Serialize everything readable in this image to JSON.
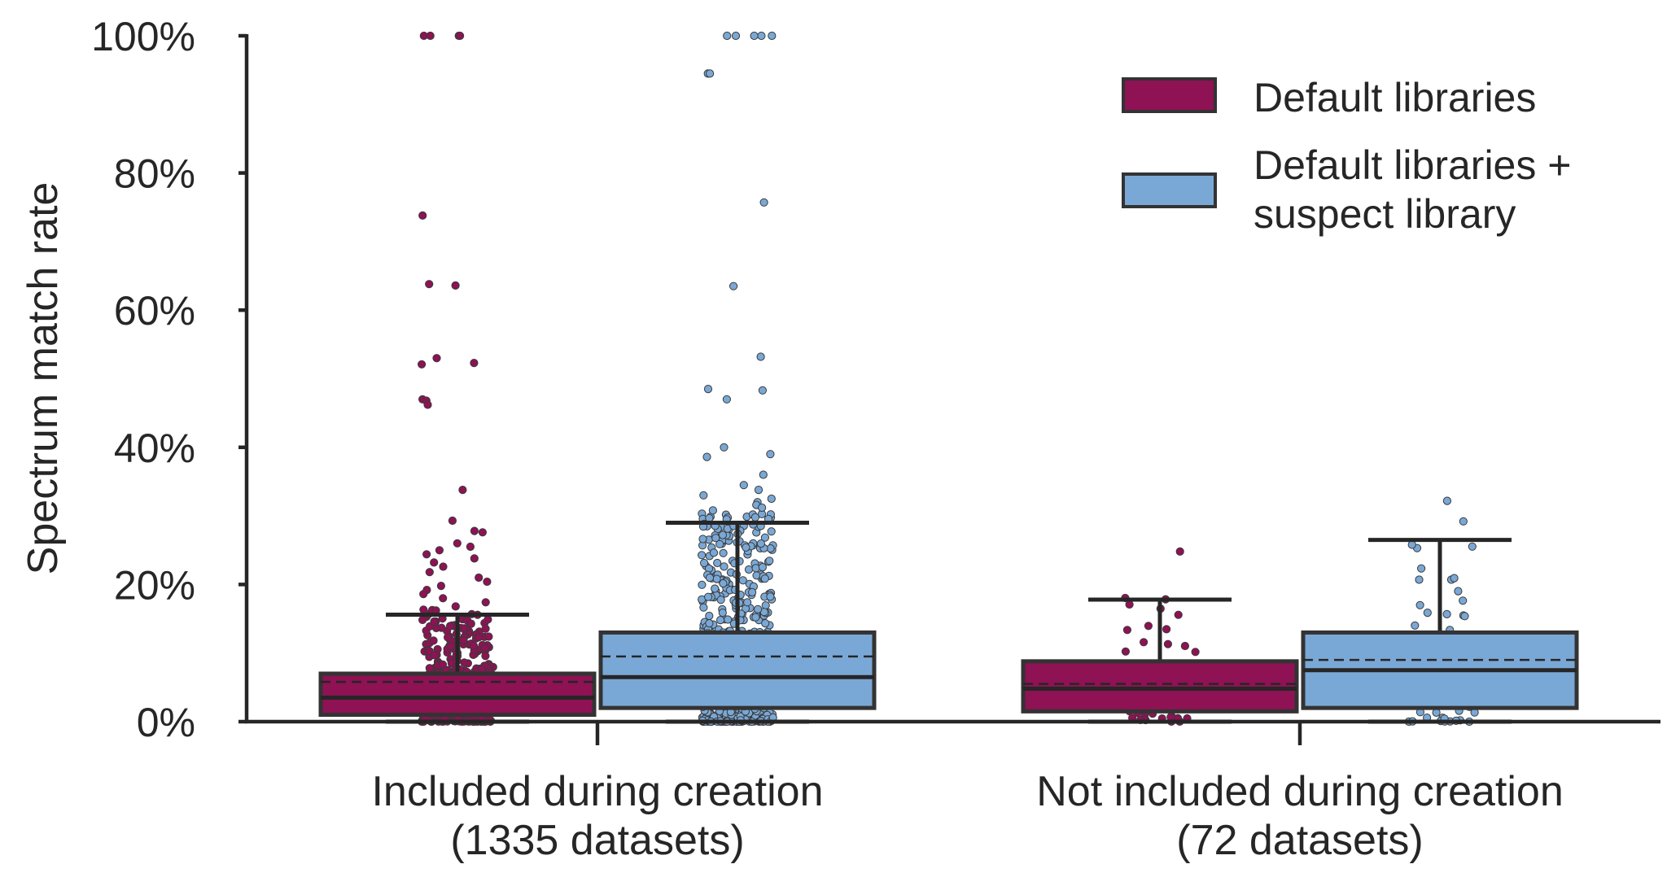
{
  "chart_data": {
    "type": "box",
    "ylabel": "Spectrum match rate",
    "ylim": [
      0,
      100
    ],
    "yticks": [
      {
        "value": 0,
        "label": "0%"
      },
      {
        "value": 20,
        "label": "20%"
      },
      {
        "value": 40,
        "label": "40%"
      },
      {
        "value": 60,
        "label": "60%"
      },
      {
        "value": 80,
        "label": "80%"
      },
      {
        "value": 100,
        "label": "100%"
      }
    ],
    "categories": [
      {
        "line1": "Included during creation",
        "line2": "(1335 datasets)"
      },
      {
        "line1": "Not included during creation",
        "line2": "(72 datasets)"
      }
    ],
    "legend": {
      "placement": "top-right",
      "entries": [
        {
          "lines": [
            "Default libraries"
          ],
          "color": "#8E1254"
        },
        {
          "lines": [
            "Default libraries +",
            "suspect library"
          ],
          "color": "#7AA8D6"
        }
      ]
    },
    "series": [
      {
        "color": "#8E1254",
        "boxes": [
          {
            "q1": 1.0,
            "median": 3.5,
            "q3": 7.0,
            "mean": 5.8,
            "whisker_low": 0,
            "whisker_high": 15.6,
            "outliers": [
              100,
              100,
              100,
              100,
              73.8,
              63.8,
              63.6,
              53.0,
              52.3,
              52.1,
              47.0,
              46.8,
              46.2,
              33.8,
              29.3,
              27.8,
              27.6,
              26.0,
              25.5,
              25.0,
              24.4,
              23.8,
              23.2,
              22.6,
              21.8,
              21.0,
              20.4,
              19.8,
              19.2,
              18.6,
              18.0,
              17.4,
              16.8,
              16.2
            ],
            "n_inner": 380
          },
          {
            "q1": 1.5,
            "median": 4.8,
            "q3": 8.8,
            "mean": 5.5,
            "whisker_low": 0,
            "whisker_high": 17.8,
            "outliers": [
              24.8
            ],
            "n_inner": 45
          }
        ]
      },
      {
        "color": "#7AA8D6",
        "boxes": [
          {
            "q1": 2.0,
            "median": 6.5,
            "q3": 13.0,
            "mean": 9.5,
            "whisker_low": 0,
            "whisker_high": 29.0,
            "outliers": [
              100,
              100,
              100,
              100,
              100,
              94.5,
              94.5,
              75.7,
              63.5,
              53.2,
              48.5,
              48.3,
              47.0,
              40.0,
              39.0,
              38.6,
              36.0,
              34.5,
              33.8,
              33.0,
              32.5,
              32.0,
              31.6,
              31.2,
              30.8,
              30.2,
              29.8
            ],
            "n_inner": 560
          },
          {
            "q1": 2.0,
            "median": 7.5,
            "q3": 13.0,
            "mean": 9.0,
            "whisker_low": 0,
            "whisker_high": 26.5,
            "outliers": [
              32.2,
              29.2
            ],
            "n_inner": 55
          }
        ]
      }
    ]
  }
}
